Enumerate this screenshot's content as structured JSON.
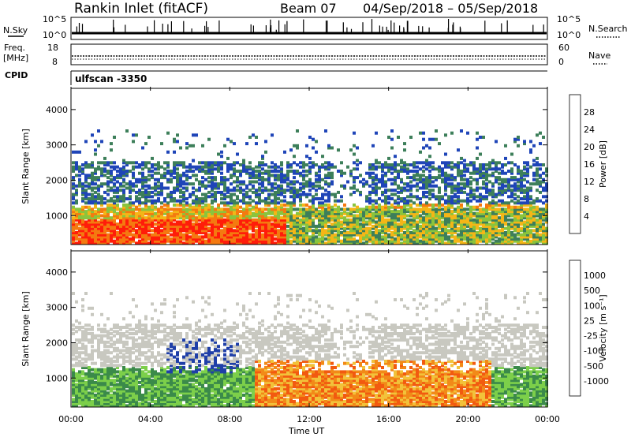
{
  "header": {
    "station": "Rankin Inlet (fitACF)",
    "beam": "Beam 07",
    "daterange": "04/Sep/2018 – 05/Sep/2018"
  },
  "strips": {
    "nsky_label": "N.Sky",
    "nsky_ticks": [
      "10^5",
      "10^0"
    ],
    "nsearch_label": "N.Search",
    "nsearch_ticks": [
      "10^5",
      "10^0"
    ],
    "freq_label": "Freq.",
    "freq_unit": "[MHz]",
    "freq_ticks": [
      "18",
      "8"
    ],
    "nave_label": "Nave",
    "nave_ticks": [
      "60",
      "0"
    ],
    "cpid_label": "CPID",
    "cpid_value": "ulfscan -3350"
  },
  "chart_data": [
    {
      "type": "heatmap",
      "title": "",
      "xlabel": "Time UT",
      "ylabel": "Slant Range [km]",
      "ylim": [
        180,
        4600
      ],
      "yticks": [
        1000,
        2000,
        3000,
        4000
      ],
      "yticklabels": [
        "1000",
        "2000",
        "3000",
        "4000"
      ],
      "xticks": [
        "00:00",
        "04:00",
        "08:00",
        "12:00",
        "16:00",
        "20:00",
        "00:00"
      ],
      "colorbar": {
        "label": "Power [dB]",
        "ticks": [
          "4",
          "8",
          "12",
          "16",
          "20",
          "24",
          "28"
        ],
        "colors": [
          "#1010ff",
          "#1f45b8",
          "#3d7f5a",
          "#8ac43d",
          "#f4b617",
          "#f47a10",
          "#ff1d0a"
        ]
      }
    },
    {
      "type": "heatmap",
      "title": "",
      "xlabel": "Time UT",
      "ylabel": "Slant Range [km]",
      "ylim": [
        180,
        4600
      ],
      "yticks": [
        1000,
        2000,
        3000,
        4000
      ],
      "yticklabels": [
        "1000",
        "2000",
        "3000",
        "4000"
      ],
      "xticks": [
        "00:00",
        "04:00",
        "08:00",
        "12:00",
        "16:00",
        "20:00",
        "00:00"
      ],
      "colorbar": {
        "label": "Velocity [m s⁻¹]",
        "ticks": [
          "1000",
          "500",
          "100",
          "25",
          "-25",
          "-100",
          "-500",
          "-1000"
        ],
        "colors": [
          "#1f3fa8",
          "#2a6e8a",
          "#3b8a4a",
          "#7ccf4a",
          "#c8c8c0",
          "#f2c23a",
          "#f28a18",
          "#f25a10",
          "#e01010"
        ]
      }
    }
  ],
  "axis": {
    "xlabel": "Time UT"
  }
}
